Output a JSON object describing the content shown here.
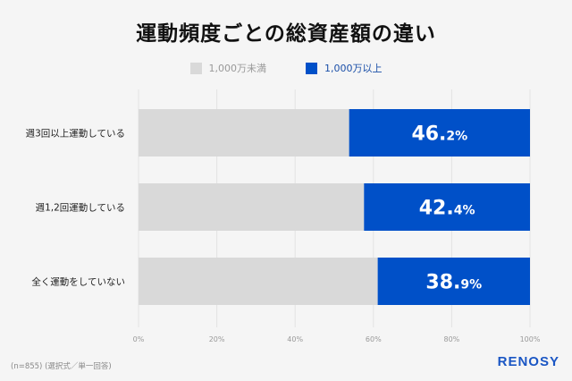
{
  "chart_data": {
    "type": "bar",
    "stacked": true,
    "orientation": "horizontal",
    "title": "運動頻度ごとの総資産額の違い",
    "categories": [
      "週3回以上運動している",
      "週1,2回運動している",
      "全く運動をしていない"
    ],
    "series": [
      {
        "name": "1,000万未満",
        "color": "#d9d9d9",
        "values": [
          53.8,
          57.6,
          61.1
        ]
      },
      {
        "name": "1,000万以上",
        "color": "#0050c8",
        "values": [
          46.2,
          42.4,
          38.9
        ]
      }
    ],
    "data_labels": [
      {
        "main": "46.",
        "decimal": "2%"
      },
      {
        "main": "42.",
        "decimal": "4%"
      },
      {
        "main": "38.",
        "decimal": "9%"
      }
    ],
    "xlim": [
      0,
      100
    ],
    "xticks": [
      "0%",
      "20%",
      "40%",
      "60%",
      "80%",
      "100%"
    ],
    "grid": true,
    "legend_position": "top-center"
  },
  "footer": {
    "note": "(n=855) (選択式／単一回答)",
    "logo": "RENOSY"
  }
}
